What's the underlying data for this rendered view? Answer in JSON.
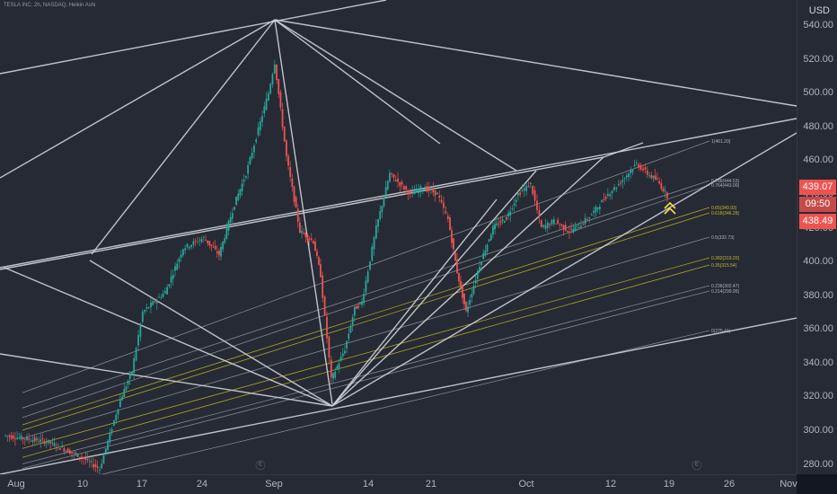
{
  "header": {
    "symbol_line": "TESLA INC, 2h, NASDAQ, Heikin Ashi"
  },
  "price_axis": {
    "currency": "USD",
    "labels": [
      "540.00",
      "520.00",
      "500.00",
      "480.00",
      "460.00",
      "440.00",
      "420.00",
      "400.00",
      "380.00",
      "360.00",
      "340.00",
      "320.00",
      "300.00",
      "280.00"
    ],
    "last_price_tag": "439.07",
    "countdown_tag": "09:50",
    "close_price_tag": "438.49"
  },
  "time_axis": {
    "labels": [
      "Aug",
      "10",
      "17",
      "24",
      "Sep",
      "14",
      "21",
      "Oct",
      "12",
      "19",
      "26",
      "Nov"
    ]
  },
  "markers": [
    "E",
    "E"
  ],
  "colors": {
    "background": "#262a34",
    "up_candle": "#26a69a",
    "down_candle": "#ef5350",
    "pitchfork_lines": "#d1d4dc",
    "fib_yellow": "#c9b828",
    "fib_gray": "#9598a1",
    "price_tag_red": "#ef5350",
    "arrow_yellow": "#f5e23b"
  },
  "chart_data": {
    "type": "candlestick",
    "title": "TESLA INC, 2h, NASDAQ, Heikin Ashi",
    "ylim": [
      270,
      550
    ],
    "x_labels": [
      "Aug",
      "10",
      "17",
      "24",
      "Sep",
      "14",
      "21",
      "Oct",
      "12",
      "19",
      "26",
      "Nov"
    ],
    "grid": false,
    "price_path": [
      {
        "x": "Aug 3",
        "y": 297
      },
      {
        "x": "Aug 6",
        "y": 293
      },
      {
        "x": "Aug 10",
        "y": 284
      },
      {
        "x": "Aug 11",
        "y": 277
      },
      {
        "x": "Aug 13",
        "y": 318
      },
      {
        "x": "Aug 14",
        "y": 335
      },
      {
        "x": "Aug 17",
        "y": 370
      },
      {
        "x": "Aug 19",
        "y": 382
      },
      {
        "x": "Aug 21",
        "y": 408
      },
      {
        "x": "Aug 24",
        "y": 414
      },
      {
        "x": "Aug 26",
        "y": 404
      },
      {
        "x": "Aug 27",
        "y": 434
      },
      {
        "x": "Aug 28",
        "y": 452
      },
      {
        "x": "Aug 31",
        "y": 500
      },
      {
        "x": "Sep 1",
        "y": 518
      },
      {
        "x": "Sep 2",
        "y": 462
      },
      {
        "x": "Sep 3",
        "y": 418
      },
      {
        "x": "Sep 4",
        "y": 412
      },
      {
        "x": "Sep 7",
        "y": 392
      },
      {
        "x": "Sep 8",
        "y": 330
      },
      {
        "x": "Sep 9",
        "y": 348
      },
      {
        "x": "Sep 10",
        "y": 372
      },
      {
        "x": "Sep 11",
        "y": 376
      },
      {
        "x": "Sep 14",
        "y": 420
      },
      {
        "x": "Sep 15",
        "y": 452
      },
      {
        "x": "Sep 17",
        "y": 440
      },
      {
        "x": "Sep 18",
        "y": 444
      },
      {
        "x": "Sep 21",
        "y": 440
      },
      {
        "x": "Sep 22",
        "y": 425
      },
      {
        "x": "Sep 23",
        "y": 394
      },
      {
        "x": "Sep 24",
        "y": 370
      },
      {
        "x": "Sep 25",
        "y": 398
      },
      {
        "x": "Sep 28",
        "y": 420
      },
      {
        "x": "Sep 29",
        "y": 426
      },
      {
        "x": "Sep 30",
        "y": 440
      },
      {
        "x": "Oct 1",
        "y": 446
      },
      {
        "x": "Oct 2",
        "y": 420
      },
      {
        "x": "Oct 5",
        "y": 424
      },
      {
        "x": "Oct 7",
        "y": 418
      },
      {
        "x": "Oct 8",
        "y": 422
      },
      {
        "x": "Oct 9",
        "y": 428
      },
      {
        "x": "Oct 12",
        "y": 440
      },
      {
        "x": "Oct 13",
        "y": 446
      },
      {
        "x": "Oct 14",
        "y": 458
      },
      {
        "x": "Oct 15",
        "y": 452
      },
      {
        "x": "Oct 16",
        "y": 448
      },
      {
        "x": "Oct 19",
        "y": 439
      }
    ],
    "fib_levels": [
      {
        "ratio": "1",
        "price": "461.20",
        "label": "1(461.20)"
      },
      {
        "ratio": "0.786",
        "price": "444.53",
        "label": "0.786(444.53)"
      },
      {
        "ratio": "0.764",
        "price": "443.00",
        "label": "0.764(443.00)"
      },
      {
        "ratio": "0.65",
        "price": "349.93",
        "label": "0.65(349.93)"
      },
      {
        "ratio": "0.618",
        "price": "346.28",
        "label": "0.618(346.28)"
      },
      {
        "ratio": "0.5",
        "price": "332.73",
        "label": "0.5(332.73)"
      },
      {
        "ratio": "0.382",
        "price": "319.20",
        "label": "0.382(319.20)"
      },
      {
        "ratio": "0.35",
        "price": "315.54",
        "label": "0.35(315.54)"
      },
      {
        "ratio": "0.236",
        "price": "302.47",
        "label": "0.236(302.47)"
      },
      {
        "ratio": "0.214",
        "price": "299.95",
        "label": "0.214(299.95)"
      },
      {
        "ratio": "0",
        "price": "275.41",
        "label": "0(275.41)"
      }
    ]
  }
}
